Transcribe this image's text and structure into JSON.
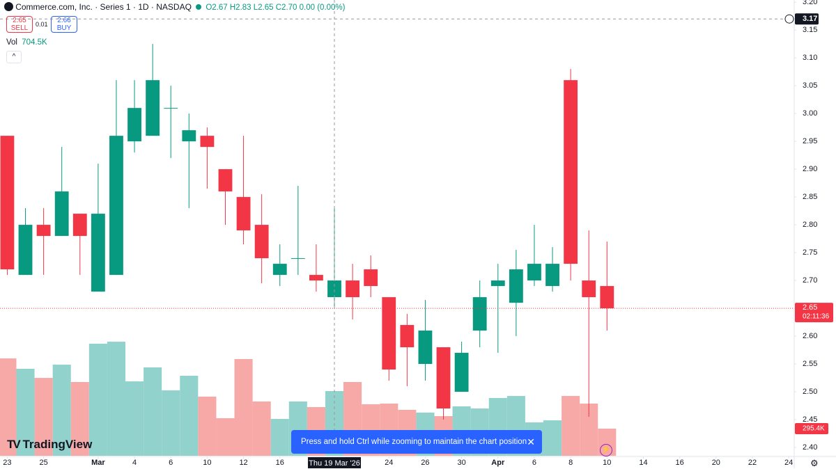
{
  "header": {
    "symbol": "Commerce.com, Inc. · Series 1 · 1D · NASDAQ",
    "ohlc": [
      "O2.67",
      "H2.83",
      "L2.65",
      "C2.70"
    ],
    "change": "0.00 (0.00%)",
    "sell_price": "2.65",
    "sell": "SELL",
    "spread": "0.01",
    "buy_price": "2.66",
    "buy": "BUY",
    "vol_label": "Vol",
    "vol_value": "704.5K"
  },
  "chart_data": {
    "type": "candlestick",
    "x": [
      0,
      1,
      2,
      3,
      4,
      5,
      6,
      7,
      8,
      9,
      10,
      11,
      12,
      13,
      14,
      15,
      16,
      17,
      18,
      19,
      20,
      21,
      22,
      23,
      24,
      25,
      26,
      27,
      28,
      29,
      30,
      31,
      32,
      33
    ],
    "open": [
      2.96,
      2.71,
      2.8,
      2.78,
      2.82,
      2.68,
      2.71,
      2.95,
      2.96,
      3.01,
      2.95,
      2.96,
      2.9,
      2.85,
      2.8,
      2.71,
      2.74,
      2.71,
      2.67,
      2.7,
      2.72,
      2.67,
      2.62,
      2.55,
      2.58,
      2.5,
      2.61,
      2.69,
      2.66,
      2.7,
      2.69,
      3.06,
      2.7,
      2.69
    ],
    "high": [
      2.96,
      2.83,
      2.83,
      2.94,
      2.82,
      2.91,
      3.06,
      3.06,
      3.125,
      3.05,
      3.0,
      2.975,
      2.9,
      2.96,
      2.855,
      2.765,
      2.87,
      2.765,
      2.83,
      2.73,
      2.745,
      2.67,
      2.64,
      2.665,
      2.58,
      2.59,
      2.7,
      2.73,
      2.755,
      2.8,
      2.76,
      3.08,
      2.79,
      2.77
    ],
    "low": [
      2.71,
      2.71,
      2.71,
      2.78,
      2.71,
      2.68,
      2.71,
      2.93,
      2.96,
      2.92,
      2.83,
      2.865,
      2.8,
      2.765,
      2.695,
      2.69,
      2.71,
      2.68,
      2.65,
      2.63,
      2.67,
      2.52,
      2.51,
      2.52,
      2.45,
      2.5,
      2.58,
      2.57,
      2.6,
      2.69,
      2.68,
      2.7,
      2.455,
      2.61
    ],
    "close": [
      2.72,
      2.8,
      2.78,
      2.86,
      2.78,
      2.82,
      2.96,
      3.01,
      3.06,
      3.01,
      2.97,
      2.94,
      2.86,
      2.79,
      2.74,
      2.73,
      2.74,
      2.7,
      2.7,
      2.67,
      2.69,
      2.54,
      2.58,
      2.61,
      2.47,
      2.57,
      2.67,
      2.7,
      2.72,
      2.73,
      2.73,
      2.73,
      2.67,
      2.65
    ],
    "volume": [
      1060,
      947,
      848,
      992,
      803,
      1220,
      1242,
      810,
      962,
      712,
      871,
      644,
      409,
      1053,
      591,
      401,
      591,
      530,
      704.5,
      803,
      561,
      568,
      500,
      470,
      432,
      538,
      515,
      629,
      651,
      364,
      386,
      651,
      568,
      295.4
    ],
    "up_color": "#089981",
    "down_color": "#f23645",
    "vol_up_color": "#92d2cc",
    "vol_down_color": "#f7a9a7",
    "xlim": [
      -0.4,
      43.3
    ],
    "ylim": [
      2.385,
      3.204
    ],
    "volume_lim": [
      0,
      4962
    ],
    "yticks": [
      {
        "value": 3.2,
        "label": "3.20"
      },
      3.15,
      {
        "value": 3.1,
        "label": "3.10"
      },
      3.05,
      {
        "value": 3.0,
        "label": "3.00"
      },
      2.95,
      {
        "value": 2.9,
        "label": "2.90"
      },
      2.85,
      {
        "value": 2.8,
        "label": "2.80"
      },
      2.75,
      {
        "value": 2.7,
        "label": "2.70"
      },
      2.65,
      {
        "value": 2.6,
        "label": "2.60"
      },
      2.55,
      {
        "value": 2.5,
        "label": "2.50"
      },
      2.45,
      {
        "value": 2.4,
        "label": "2.40"
      }
    ],
    "xticks": [
      {
        "value": 0,
        "label": "23"
      },
      {
        "value": 2,
        "label": "25"
      },
      {
        "value": 5,
        "label": "Mar"
      },
      {
        "value": 7,
        "label": "4"
      },
      {
        "value": 9,
        "label": "6"
      },
      {
        "value": 11,
        "label": "10"
      },
      {
        "value": 13,
        "label": "12"
      },
      {
        "value": 15,
        "label": "16"
      },
      {
        "value": 21,
        "label": "24"
      },
      {
        "value": 23,
        "label": "26"
      },
      {
        "value": 25,
        "label": "30"
      },
      {
        "value": 27,
        "label": "Apr"
      },
      {
        "value": 29,
        "label": "6"
      },
      {
        "value": 31,
        "label": "8"
      },
      {
        "value": 33,
        "label": "10"
      },
      {
        "value": 35,
        "label": "14"
      },
      {
        "value": 37,
        "label": "16"
      },
      {
        "value": 39,
        "label": "20"
      },
      {
        "value": 41,
        "label": "22"
      },
      {
        "value": 43,
        "label": "24"
      }
    ],
    "crosshair": {
      "x": 18,
      "date_label": "Thu 19 Mar '26",
      "price": 3.17
    },
    "last_price": 2.65,
    "countdown": "02:11:36",
    "last_volume_label": "295.4K"
  },
  "logo": "TradingView",
  "toast": "Press and hold Ctrl while zooming to maintain the chart position"
}
